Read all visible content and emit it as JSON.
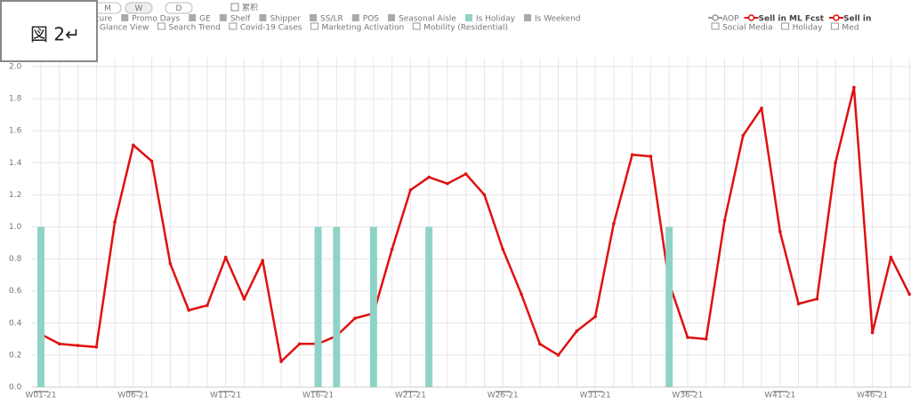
{
  "overlay_label": "図 2↵",
  "toggles": [
    "M",
    "W",
    "D",
    "累积"
  ],
  "legend": {
    "row1": [
      "ture",
      "Promo Days",
      "GE",
      "Shelf",
      "Shipper",
      "SS/LR",
      "POS",
      "Seasonal Aisle",
      "Is Weekend"
    ],
    "row2": [
      "Glance View",
      "Search Trend",
      "Covid-19 Cases",
      "Marketing Activation",
      "Mobility (Residential)"
    ],
    "right1": [
      "AOP",
      "Sell in"
    ],
    "right2": [
      "Social Media",
      "Holiday",
      "Med"
    ]
  },
  "chart_data": {
    "type": "line",
    "categories": [
      "W01-21",
      null,
      null,
      null,
      null,
      "W06-21",
      null,
      null,
      null,
      null,
      "W11-21",
      null,
      null,
      null,
      null,
      "W16-21",
      null,
      null,
      null,
      null,
      "W21-21",
      null,
      null,
      null,
      null,
      "W26-21",
      null,
      null,
      null,
      null,
      "W31-21",
      null,
      null,
      null,
      null,
      "W36-21",
      null,
      null,
      null,
      null,
      "W41-21",
      null,
      null,
      null,
      null,
      "W46-21",
      null,
      null
    ],
    "series": [
      {
        "name": "Sell in ML Fcst",
        "color": "#e01010",
        "type": "line",
        "values": [
          0.33,
          0.27,
          0.26,
          0.25,
          1.03,
          1.51,
          1.41,
          0.77,
          0.48,
          0.51,
          0.81,
          0.55,
          0.79,
          0.16,
          0.27,
          0.27,
          0.32,
          0.43,
          0.46,
          0.86,
          1.23,
          1.31,
          1.27,
          1.33,
          1.2,
          0.86,
          0.58,
          0.27,
          0.2,
          0.35,
          0.44,
          1.02,
          1.45,
          1.44,
          0.65,
          0.31,
          0.3,
          1.04,
          1.57,
          1.74,
          0.97,
          0.52,
          0.55,
          1.4,
          1.87,
          0.34,
          0.81,
          0.58
        ]
      },
      {
        "name": "Is Holiday",
        "color": "#8fd3c7",
        "type": "bar",
        "values": [
          1,
          null,
          null,
          null,
          null,
          null,
          null,
          null,
          null,
          null,
          null,
          null,
          null,
          null,
          null,
          1,
          1,
          null,
          1,
          null,
          null,
          1,
          null,
          null,
          null,
          null,
          null,
          null,
          null,
          null,
          null,
          null,
          null,
          null,
          1,
          null,
          null,
          null,
          null,
          null,
          null,
          null,
          null,
          null,
          null,
          null,
          null,
          null
        ]
      }
    ],
    "ylim": [
      0,
      2
    ],
    "yticks": [
      {
        "value": 0,
        "label": "0.0"
      },
      0.2,
      0.4,
      0.6,
      0.8,
      {
        "value": 1,
        "label": "1.0"
      },
      1.2,
      1.4,
      1.6,
      1.8,
      {
        "value": 2,
        "label": "2.0"
      }
    ],
    "grid": true
  }
}
